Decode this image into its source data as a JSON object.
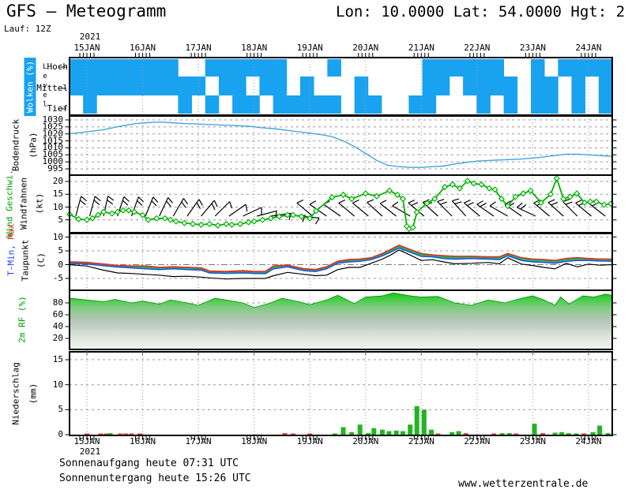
{
  "header": {
    "title_left": "GFS – Meteogramm",
    "title_right": "Lon: 10.0000 Lat: 54.0000 Hgt: 2",
    "run": "Lauf: 12Z"
  },
  "footer": {
    "sunrise": "Sonnenaufgang heute 07:31 UTC",
    "sunset": "Sonnenuntergang heute 15:26 UTC",
    "website": "www.wetterzentrale.de"
  },
  "axis": {
    "year": "2021",
    "t_start": 14.69,
    "t_end": 24.42,
    "days": [
      {
        "t": 15,
        "label": "15JAN"
      },
      {
        "t": 16,
        "label": "16JAN"
      },
      {
        "t": 17,
        "label": "17JAN"
      },
      {
        "t": 18,
        "label": "18JAN"
      },
      {
        "t": 19,
        "label": "19JAN"
      },
      {
        "t": 20,
        "label": "20JAN"
      },
      {
        "t": 21,
        "label": "21JAN"
      },
      {
        "t": 22,
        "label": "22JAN"
      },
      {
        "t": 23,
        "label": "23JAN"
      },
      {
        "t": 24,
        "label": "24JAN"
      }
    ]
  },
  "colors": {
    "cloud_blue": "#18a2f0",
    "pressure_line": "#45a7dc",
    "wind_green": "#00b400",
    "tmax_red": "#e03020",
    "tmin_blue": "#2244ee",
    "dew_black": "#000000",
    "temp_fill": "#00cc66",
    "precip_green": "#22b422",
    "precip_red": "#e84430",
    "grid_gray": "#999999"
  },
  "chart_data": [
    {
      "name": "clouds",
      "type": "heatmap",
      "label": "Wolken (%)",
      "axis_label": "Level",
      "levels": [
        "Hoch",
        "Mittel",
        "Tief"
      ],
      "t0": 14.69,
      "dt": 0.2435,
      "rows": {
        "Hoch": "1111111100111111000100000011111100101111",
        "Mittel": "1111111111011011010001000011011110110101",
        "Tief": "0100000010101101111101100110001010110101"
      }
    },
    {
      "name": "pressure",
      "type": "line",
      "label": "Bodendruck",
      "unit": "(hPa)",
      "yticks": [
        1030,
        1025,
        1020,
        1015,
        1010,
        1005,
        1000,
        995
      ],
      "points": [
        [
          14.69,
          1020
        ],
        [
          15.0,
          1021.5
        ],
        [
          15.3,
          1023
        ],
        [
          15.6,
          1025.5
        ],
        [
          15.9,
          1027.5
        ],
        [
          16.1,
          1028
        ],
        [
          16.3,
          1028.5
        ],
        [
          16.5,
          1028
        ],
        [
          16.7,
          1027.5
        ],
        [
          17.0,
          1027
        ],
        [
          17.3,
          1026.5
        ],
        [
          17.6,
          1026
        ],
        [
          17.9,
          1025.5
        ],
        [
          18.1,
          1024.5
        ],
        [
          18.4,
          1023.5
        ],
        [
          18.7,
          1022
        ],
        [
          19.0,
          1020.5
        ],
        [
          19.2,
          1019.5
        ],
        [
          19.4,
          1018
        ],
        [
          19.6,
          1015
        ],
        [
          19.8,
          1011
        ],
        [
          20.0,
          1006
        ],
        [
          20.2,
          1001
        ],
        [
          20.4,
          997.5
        ],
        [
          20.6,
          996.5
        ],
        [
          20.8,
          996
        ],
        [
          21.0,
          996
        ],
        [
          21.2,
          996.5
        ],
        [
          21.4,
          997
        ],
        [
          21.6,
          998.5
        ],
        [
          21.8,
          999.5
        ],
        [
          22.0,
          1000.5
        ],
        [
          22.2,
          1001
        ],
        [
          22.5,
          1001.5
        ],
        [
          22.8,
          1002
        ],
        [
          23.1,
          1003
        ],
        [
          23.4,
          1004.5
        ],
        [
          23.6,
          1005.5
        ],
        [
          23.8,
          1005.5
        ],
        [
          24.0,
          1005
        ],
        [
          24.2,
          1004.5
        ],
        [
          24.42,
          1004
        ]
      ]
    },
    {
      "name": "wind",
      "type": "line",
      "label": "Wind Geschwi.",
      "label2": "Windfahnen",
      "unit": "(kt)",
      "yticks": [
        20,
        15,
        10,
        5
      ],
      "points": [
        [
          14.69,
          7.2
        ],
        [
          14.85,
          5.3
        ],
        [
          15.0,
          5.0
        ],
        [
          15.1,
          5.6
        ],
        [
          15.2,
          6.9
        ],
        [
          15.3,
          8.1
        ],
        [
          15.45,
          7.5
        ],
        [
          15.55,
          8.1
        ],
        [
          15.65,
          8.7
        ],
        [
          15.75,
          8.7
        ],
        [
          15.85,
          8.1
        ],
        [
          16.0,
          6.9
        ],
        [
          16.1,
          5.0
        ],
        [
          16.25,
          5.6
        ],
        [
          16.4,
          5.6
        ],
        [
          16.5,
          5.0
        ],
        [
          16.6,
          4.4
        ],
        [
          16.75,
          3.8
        ],
        [
          16.9,
          3.4
        ],
        [
          17.05,
          3.1
        ],
        [
          17.2,
          3.4
        ],
        [
          17.35,
          2.8
        ],
        [
          17.5,
          3.4
        ],
        [
          17.6,
          3.1
        ],
        [
          17.75,
          3.4
        ],
        [
          17.9,
          4.1
        ],
        [
          18.0,
          4.4
        ],
        [
          18.15,
          5.0
        ],
        [
          18.3,
          5.6
        ],
        [
          18.45,
          6.3
        ],
        [
          18.6,
          6.9
        ],
        [
          18.7,
          6.9
        ],
        [
          18.85,
          6.3
        ],
        [
          19.0,
          5.6
        ],
        [
          19.11,
          8.5
        ],
        [
          19.4,
          13.8
        ],
        [
          19.6,
          14.8
        ],
        [
          19.75,
          13.2
        ],
        [
          20.0,
          15.3
        ],
        [
          20.2,
          14.2
        ],
        [
          20.43,
          16.4
        ],
        [
          20.57,
          14.8
        ],
        [
          20.67,
          13.2
        ],
        [
          20.74,
          2.5
        ],
        [
          20.78,
          1.5
        ],
        [
          20.85,
          2.0
        ],
        [
          20.92,
          8.0
        ],
        [
          21.1,
          11.5
        ],
        [
          21.24,
          13.2
        ],
        [
          21.42,
          17.8
        ],
        [
          21.56,
          18.8
        ],
        [
          21.69,
          17.3
        ],
        [
          21.83,
          20.2
        ],
        [
          21.94,
          19.2
        ],
        [
          22.08,
          18.8
        ],
        [
          22.22,
          17.3
        ],
        [
          22.32,
          16.8
        ],
        [
          22.44,
          13.2
        ],
        [
          22.55,
          10.4
        ],
        [
          22.69,
          14.0
        ],
        [
          22.83,
          15.3
        ],
        [
          22.96,
          16.4
        ],
        [
          23.15,
          11.7
        ],
        [
          23.32,
          15.0
        ],
        [
          23.43,
          21.2
        ],
        [
          23.55,
          13.2
        ],
        [
          23.67,
          14.0
        ],
        [
          23.79,
          15.3
        ],
        [
          23.93,
          11.7
        ],
        [
          24.03,
          12.1
        ],
        [
          24.14,
          12.1
        ],
        [
          24.28,
          10.9
        ],
        [
          24.4,
          11.3
        ]
      ],
      "barbs": [
        [
          14.8,
          75,
          2
        ],
        [
          15.05,
          75,
          2
        ],
        [
          15.3,
          78,
          2
        ],
        [
          15.55,
          72,
          2
        ],
        [
          15.8,
          70,
          2
        ],
        [
          16.05,
          68,
          2
        ],
        [
          16.3,
          65,
          2
        ],
        [
          16.55,
          60,
          2
        ],
        [
          16.8,
          55,
          2
        ],
        [
          17.05,
          50,
          2
        ],
        [
          17.3,
          45,
          1
        ],
        [
          17.55,
          35,
          1
        ],
        [
          17.8,
          25,
          1
        ],
        [
          18.05,
          15,
          1
        ],
        [
          18.3,
          8,
          1
        ],
        [
          18.55,
          2,
          1
        ],
        [
          18.8,
          -5,
          1
        ],
        [
          19.05,
          140,
          1
        ],
        [
          19.3,
          145,
          1
        ],
        [
          19.55,
          145,
          1
        ],
        [
          19.8,
          140,
          1
        ],
        [
          20.05,
          140,
          1
        ],
        [
          20.3,
          138,
          1
        ],
        [
          20.55,
          142,
          1
        ],
        [
          20.8,
          150,
          1
        ],
        [
          21.05,
          140,
          2
        ],
        [
          21.3,
          138,
          2
        ],
        [
          21.55,
          135,
          2
        ],
        [
          21.8,
          132,
          2
        ],
        [
          22.05,
          140,
          2
        ],
        [
          22.3,
          145,
          2
        ],
        [
          22.55,
          150,
          1
        ],
        [
          22.8,
          145,
          2
        ],
        [
          23.05,
          155,
          2
        ],
        [
          23.3,
          140,
          2
        ],
        [
          23.55,
          138,
          2
        ],
        [
          23.8,
          135,
          2
        ],
        [
          24.05,
          140,
          2
        ],
        [
          24.3,
          142,
          2
        ]
      ]
    },
    {
      "name": "temperature",
      "type": "line",
      "label_min": "T-Min, ",
      "label_max": "Max",
      "label2": "Taupunkt",
      "unit": "(C)",
      "yticks": [
        10,
        5,
        0,
        -5
      ],
      "t": [
        14.69,
        15.0,
        15.3,
        15.55,
        15.8,
        16.05,
        16.3,
        16.55,
        16.8,
        17.05,
        17.2,
        17.5,
        17.8,
        18.0,
        18.2,
        18.35,
        18.6,
        18.9,
        19.1,
        19.3,
        19.5,
        19.7,
        19.9,
        20.1,
        20.3,
        20.45,
        20.6,
        20.8,
        21.0,
        21.2,
        21.4,
        21.6,
        21.9,
        22.2,
        22.4,
        22.55,
        22.8,
        23.0,
        23.2,
        23.4,
        23.6,
        23.8,
        24.0,
        24.2,
        24.42
      ],
      "tmax": [
        1.0,
        0.8,
        0.2,
        -0.3,
        -0.5,
        -0.5,
        -1.0,
        -0.8,
        -1.0,
        -1.2,
        -2.3,
        -2.5,
        -2.2,
        -2.5,
        -2.5,
        -0.5,
        -0.2,
        -1.5,
        -1.8,
        -0.8,
        1.2,
        1.8,
        2.0,
        2.5,
        4.0,
        5.5,
        7.0,
        5.5,
        4.0,
        3.5,
        3.2,
        3.0,
        3.0,
        2.8,
        2.8,
        4.0,
        2.5,
        2.0,
        1.8,
        1.5,
        2.2,
        2.5,
        2.2,
        2.0,
        2.0
      ],
      "tmin": [
        0.4,
        0.2,
        -0.4,
        -0.9,
        -1.2,
        -1.5,
        -1.8,
        -1.5,
        -1.8,
        -2.0,
        -3.0,
        -3.2,
        -3.0,
        -3.2,
        -3.3,
        -1.5,
        -0.8,
        -2.2,
        -2.5,
        -1.5,
        0.5,
        1.0,
        1.2,
        1.8,
        3.2,
        4.5,
        6.0,
        4.5,
        3.0,
        2.8,
        2.2,
        2.0,
        2.2,
        2.0,
        1.8,
        3.2,
        1.5,
        1.0,
        0.8,
        0.5,
        1.2,
        1.5,
        1.5,
        1.3,
        1.2
      ],
      "dew": [
        0.0,
        -0.5,
        -2.0,
        -3.0,
        -3.2,
        -3.5,
        -3.8,
        -4.3,
        -4.2,
        -4.5,
        -4.8,
        -5.2,
        -5.0,
        -5.0,
        -5.0,
        -4.0,
        -2.8,
        -3.5,
        -4.0,
        -3.8,
        -1.8,
        -1.0,
        -1.0,
        0.5,
        2.0,
        3.5,
        5.3,
        3.5,
        1.5,
        1.8,
        1.0,
        0.3,
        0.5,
        0.8,
        0.3,
        2.5,
        0.2,
        -0.3,
        -1.0,
        -1.5,
        0.5,
        -0.8,
        0.2,
        -0.2,
        0.0
      ]
    },
    {
      "name": "humidity",
      "type": "area",
      "label": "2m RF (%)",
      "yticks": [
        80,
        60,
        40,
        20
      ],
      "points": [
        [
          14.69,
          88
        ],
        [
          15.0,
          85
        ],
        [
          15.3,
          82
        ],
        [
          15.5,
          86
        ],
        [
          15.8,
          80
        ],
        [
          16.0,
          83
        ],
        [
          16.3,
          78
        ],
        [
          16.5,
          85
        ],
        [
          16.8,
          80
        ],
        [
          17.0,
          76
        ],
        [
          17.3,
          88
        ],
        [
          17.5,
          85
        ],
        [
          17.8,
          80
        ],
        [
          18.0,
          72
        ],
        [
          18.3,
          80
        ],
        [
          18.5,
          88
        ],
        [
          18.8,
          82
        ],
        [
          19.0,
          77
        ],
        [
          19.3,
          85
        ],
        [
          19.5,
          93
        ],
        [
          19.8,
          79
        ],
        [
          20.0,
          90
        ],
        [
          20.3,
          92
        ],
        [
          20.5,
          97
        ],
        [
          20.8,
          92
        ],
        [
          21.0,
          90
        ],
        [
          21.3,
          91
        ],
        [
          21.6,
          80
        ],
        [
          21.9,
          76
        ],
        [
          22.2,
          85
        ],
        [
          22.5,
          80
        ],
        [
          22.8,
          88
        ],
        [
          23.0,
          92
        ],
        [
          23.2,
          85
        ],
        [
          23.4,
          76
        ],
        [
          23.5,
          90
        ],
        [
          23.65,
          78
        ],
        [
          23.9,
          92
        ],
        [
          24.1,
          90
        ],
        [
          24.3,
          95
        ],
        [
          24.42,
          93
        ]
      ]
    },
    {
      "name": "precipitation",
      "type": "bar",
      "label": "Niederschlag",
      "unit": "(mm)",
      "yticks": [
        15,
        10,
        5,
        0
      ],
      "bars": [
        [
          15.0,
          0.1,
          "r"
        ],
        [
          15.25,
          0.1,
          "r"
        ],
        [
          15.35,
          0.1,
          "r"
        ],
        [
          15.42,
          0.3,
          "g"
        ],
        [
          15.6,
          0.1,
          "r"
        ],
        [
          15.7,
          0.1,
          "r"
        ],
        [
          15.8,
          0.15,
          "r"
        ],
        [
          15.95,
          0.1,
          "r"
        ],
        [
          18.55,
          0.3,
          "r"
        ],
        [
          18.7,
          0.1,
          "r"
        ],
        [
          19.0,
          0.1,
          "r"
        ],
        [
          19.45,
          0.2,
          "g"
        ],
        [
          19.6,
          1.5,
          "g"
        ],
        [
          19.75,
          0.5,
          "g"
        ],
        [
          19.9,
          2.0,
          "g"
        ],
        [
          20.05,
          0.3,
          "g"
        ],
        [
          20.15,
          1.3,
          "g"
        ],
        [
          20.3,
          1.0,
          "g"
        ],
        [
          20.42,
          0.7,
          "g"
        ],
        [
          20.55,
          0.8,
          "g"
        ],
        [
          20.67,
          0.7,
          "g"
        ],
        [
          20.8,
          2.0,
          "g"
        ],
        [
          20.92,
          5.7,
          "g"
        ],
        [
          21.05,
          5.0,
          "g"
        ],
        [
          21.18,
          1.0,
          "g"
        ],
        [
          21.3,
          0.15,
          "r"
        ],
        [
          21.55,
          0.5,
          "g"
        ],
        [
          21.67,
          0.7,
          "g"
        ],
        [
          21.8,
          0.3,
          "r"
        ],
        [
          22.3,
          0.2,
          "r"
        ],
        [
          22.45,
          0.3,
          "g"
        ],
        [
          22.58,
          0.3,
          "g"
        ],
        [
          22.7,
          0.2,
          "r"
        ],
        [
          23.03,
          2.2,
          "g"
        ],
        [
          23.18,
          0.3,
          "r"
        ],
        [
          23.4,
          0.4,
          "g"
        ],
        [
          23.52,
          0.5,
          "g"
        ],
        [
          23.64,
          0.3,
          "g"
        ],
        [
          23.78,
          0.1,
          "g"
        ],
        [
          23.92,
          0.1,
          "r"
        ],
        [
          24.08,
          0.5,
          "g"
        ],
        [
          24.2,
          1.8,
          "g"
        ],
        [
          24.35,
          0.3,
          "g"
        ]
      ]
    }
  ]
}
